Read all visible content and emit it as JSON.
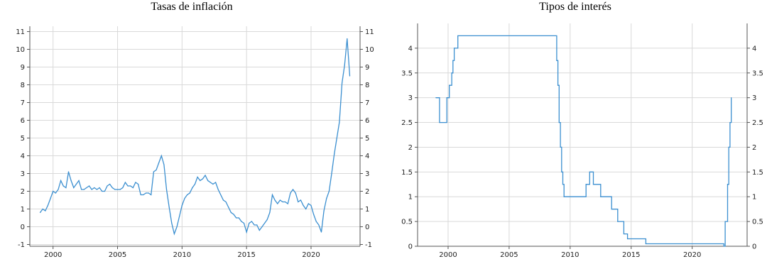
{
  "chart_data": [
    {
      "type": "line",
      "title": "Tasas de inflación",
      "xlabel": "",
      "ylabel": "",
      "xlim": [
        1998.2,
        2023.8
      ],
      "ylim": [
        -1.1,
        11.3
      ],
      "grid": true,
      "x_ticks": [
        2000,
        2005,
        2010,
        2015,
        2020
      ],
      "y_ticks": [
        -1,
        0,
        1,
        2,
        3,
        4,
        5,
        6,
        7,
        8,
        9,
        10,
        11
      ],
      "y_ticks_right": true,
      "color": "#3b8fd0",
      "x": [
        1999.0,
        1999.2,
        1999.4,
        1999.6,
        1999.8,
        2000.0,
        2000.2,
        2000.4,
        2000.6,
        2000.8,
        2001.0,
        2001.2,
        2001.4,
        2001.6,
        2001.8,
        2002.0,
        2002.2,
        2002.4,
        2002.6,
        2002.8,
        2003.0,
        2003.2,
        2003.4,
        2003.6,
        2003.8,
        2004.0,
        2004.2,
        2004.4,
        2004.6,
        2004.8,
        2005.0,
        2005.2,
        2005.4,
        2005.6,
        2005.8,
        2006.0,
        2006.2,
        2006.4,
        2006.6,
        2006.8,
        2007.0,
        2007.2,
        2007.4,
        2007.6,
        2007.8,
        2008.0,
        2008.2,
        2008.4,
        2008.6,
        2008.8,
        2009.0,
        2009.2,
        2009.4,
        2009.6,
        2009.8,
        2010.0,
        2010.2,
        2010.4,
        2010.6,
        2010.8,
        2011.0,
        2011.2,
        2011.4,
        2011.6,
        2011.8,
        2012.0,
        2012.2,
        2012.4,
        2012.6,
        2012.8,
        2013.0,
        2013.2,
        2013.4,
        2013.6,
        2013.8,
        2014.0,
        2014.2,
        2014.4,
        2014.6,
        2014.8,
        2015.0,
        2015.2,
        2015.4,
        2015.6,
        2015.8,
        2016.0,
        2016.2,
        2016.4,
        2016.6,
        2016.8,
        2017.0,
        2017.2,
        2017.4,
        2017.6,
        2017.8,
        2018.0,
        2018.2,
        2018.4,
        2018.6,
        2018.8,
        2019.0,
        2019.2,
        2019.4,
        2019.6,
        2019.8,
        2020.0,
        2020.2,
        2020.4,
        2020.6,
        2020.8,
        2021.0,
        2021.2,
        2021.4,
        2021.6,
        2021.8,
        2022.0,
        2022.2,
        2022.4,
        2022.6,
        2022.8,
        2023.0
      ],
      "values": [
        0.8,
        1.0,
        0.9,
        1.2,
        1.6,
        2.0,
        1.9,
        2.1,
        2.6,
        2.3,
        2.2,
        3.1,
        2.6,
        2.2,
        2.4,
        2.6,
        2.1,
        2.1,
        2.2,
        2.3,
        2.1,
        2.2,
        2.1,
        2.2,
        2.0,
        2.0,
        2.3,
        2.4,
        2.2,
        2.1,
        2.1,
        2.1,
        2.2,
        2.5,
        2.3,
        2.3,
        2.2,
        2.5,
        2.4,
        1.8,
        1.8,
        1.9,
        1.9,
        1.8,
        3.1,
        3.2,
        3.6,
        4.0,
        3.5,
        2.1,
        1.1,
        0.2,
        -0.4,
        0.0,
        0.6,
        1.2,
        1.6,
        1.8,
        1.9,
        2.2,
        2.4,
        2.8,
        2.6,
        2.7,
        2.9,
        2.6,
        2.5,
        2.4,
        2.5,
        2.1,
        1.8,
        1.5,
        1.4,
        1.1,
        0.8,
        0.7,
        0.5,
        0.5,
        0.3,
        0.2,
        -0.3,
        0.2,
        0.3,
        0.1,
        0.1,
        -0.2,
        0.0,
        0.2,
        0.4,
        0.8,
        1.8,
        1.5,
        1.3,
        1.5,
        1.4,
        1.4,
        1.3,
        1.9,
        2.1,
        1.9,
        1.4,
        1.5,
        1.2,
        1.0,
        1.3,
        1.2,
        0.7,
        0.3,
        0.1,
        -0.3,
        0.9,
        1.6,
        2.0,
        3.0,
        4.1,
        5.0,
        5.9,
        8.1,
        9.1,
        10.6,
        8.5
      ]
    },
    {
      "type": "line",
      "title": "Tipos de interés",
      "xlabel": "",
      "ylabel": "",
      "xlim": [
        1997.5,
        2024.5
      ],
      "ylim": [
        0,
        4.5
      ],
      "grid": true,
      "step": true,
      "x_ticks": [
        2000,
        2005,
        2010,
        2015,
        2020
      ],
      "y_ticks": [
        0,
        0.5,
        1,
        1.5,
        2,
        2.5,
        3,
        3.5,
        4
      ],
      "y_ticks_right": true,
      "color": "#3b8fd0",
      "x": [
        1999.0,
        1999.3,
        1999.9,
        2000.1,
        2000.3,
        2000.4,
        2000.5,
        2000.8,
        2000.9,
        2008.9,
        2009.0,
        2009.1,
        2009.2,
        2009.3,
        2009.4,
        2009.5,
        2011.3,
        2011.6,
        2011.9,
        2012.5,
        2013.4,
        2013.9,
        2014.4,
        2014.7,
        2016.2,
        2022.6,
        2022.7,
        2022.9,
        2023.0,
        2023.1,
        2023.2
      ],
      "values": [
        3.0,
        2.5,
        3.0,
        3.25,
        3.5,
        3.75,
        4.0,
        4.25,
        4.25,
        3.75,
        3.25,
        2.5,
        2.0,
        1.5,
        1.25,
        1.0,
        1.25,
        1.5,
        1.25,
        1.0,
        0.75,
        0.5,
        0.25,
        0.15,
        0.05,
        0.0,
        0.5,
        1.25,
        2.0,
        2.5,
        3.0
      ]
    }
  ]
}
